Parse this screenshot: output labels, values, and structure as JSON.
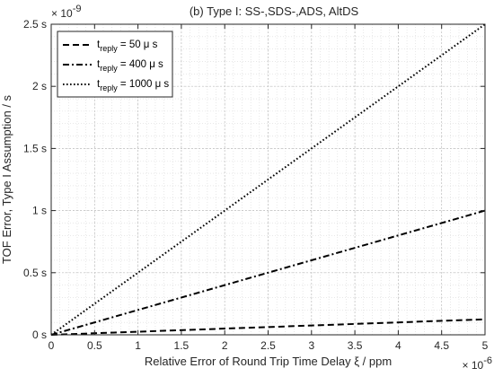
{
  "chart_data": {
    "type": "line",
    "title": "(b) Type I: SS-,SDS-,ADS, AltDS",
    "xlabel": "Relative Error of Round Trip Time Delay ξ / ppm",
    "ylabel": "TOF Error, Type I Assumption / s",
    "x_multiplier_label": "× 10",
    "x_multiplier_exp": "-6",
    "y_multiplier_label": "× 10",
    "y_multiplier_exp": "-9",
    "xlim": [
      0,
      5
    ],
    "ylim": [
      0,
      2.5
    ],
    "x_ticks": [
      0,
      0.5,
      1,
      1.5,
      2,
      2.5,
      3,
      3.5,
      4,
      4.5,
      5
    ],
    "x_tick_labels": [
      "0",
      "0.5",
      "1",
      "1.5",
      "2",
      "2.5",
      "3",
      "3.5",
      "4",
      "4.5",
      "5"
    ],
    "y_ticks": [
      0,
      0.5,
      1,
      1.5,
      2,
      2.5
    ],
    "y_tick_labels": [
      "0 s",
      "0.5 s",
      "1 s",
      "1.5 s",
      "2 s",
      "2.5 s"
    ],
    "grid": true,
    "minor_grid": true,
    "legend_position": "top-left",
    "series": [
      {
        "name_main": "t",
        "name_sub": "reply",
        "name_rest": " = 50 μ s",
        "style": "dashed",
        "x": [
          0,
          5
        ],
        "y": [
          0,
          0.125
        ]
      },
      {
        "name_main": "t",
        "name_sub": "reply",
        "name_rest": " = 400 μ s",
        "style": "dashdot",
        "x": [
          0,
          5
        ],
        "y": [
          0,
          1.0
        ]
      },
      {
        "name_main": "t",
        "name_sub": "reply",
        "name_rest": " = 1000 μ s",
        "style": "dotted",
        "x": [
          0,
          5
        ],
        "y": [
          0,
          2.5
        ]
      }
    ]
  }
}
